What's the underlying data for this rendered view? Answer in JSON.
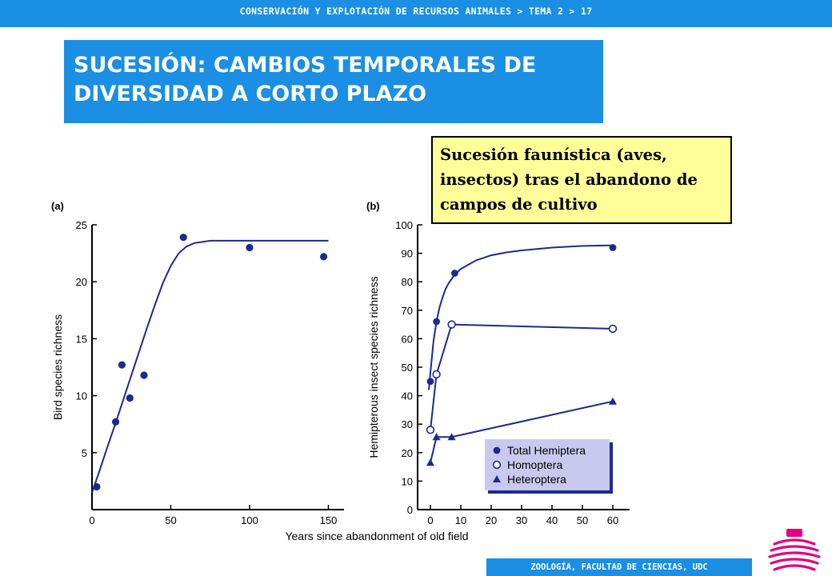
{
  "header": {
    "breadcrumb": "CONSERVACIÓN Y EXPLOTACIÓN DE RECURSOS ANIMALES > TEMA 2 > 17"
  },
  "title": {
    "line1": "SUCESIÓN: CAMBIOS TEMPORALES DE",
    "line2": "DIVERSIDAD A CORTO PLAZO"
  },
  "callout": {
    "line1": "Sucesión faunística (aves,",
    "line2": "insectos) tras el abandono de",
    "line3": "campos de cultivo"
  },
  "footer": {
    "text": "ZOOLOGÍA, FACULTAD DE CIENCIAS, UDC"
  },
  "colors": {
    "accent": "#1a8fe3",
    "series": "#1b2a8f",
    "callout_bg": "#fffe99",
    "legend_bg": "#c9c9ef",
    "logo": "#e3007e"
  },
  "shared_xlabel": "Years since abandonment of old field",
  "chart_data": [
    {
      "type": "scatter",
      "panel_label": "(a)",
      "ylabel": "Bird species richness",
      "xlabel": "",
      "xlim": [
        0,
        160
      ],
      "ylim": [
        0,
        25
      ],
      "xticks": [
        0,
        50,
        100,
        150
      ],
      "yticks": [
        5,
        10,
        15,
        20,
        25
      ],
      "points": {
        "x": [
          3,
          15,
          19,
          24,
          33,
          58,
          100,
          147
        ],
        "y": [
          2,
          7.7,
          12.7,
          9.8,
          11.8,
          23.9,
          23,
          22.2
        ]
      },
      "fit_curve": {
        "x": [
          0,
          5,
          10,
          15,
          20,
          25,
          30,
          35,
          40,
          45,
          50,
          55,
          60,
          65,
          70,
          75,
          80,
          90,
          100,
          120,
          150
        ],
        "y": [
          1.5,
          3.5,
          5.6,
          7.6,
          9.7,
          11.8,
          13.9,
          16.0,
          18.0,
          19.9,
          21.4,
          22.5,
          23.1,
          23.4,
          23.5,
          23.6,
          23.6,
          23.6,
          23.6,
          23.6,
          23.6
        ]
      }
    },
    {
      "type": "line",
      "panel_label": "(b)",
      "ylabel": "Hemipterous insect species richness",
      "xlabel": "",
      "xlim": [
        -2,
        65
      ],
      "ylim": [
        0,
        100
      ],
      "xticks": [
        0,
        10,
        20,
        30,
        40,
        50,
        60
      ],
      "yticks": [
        0,
        10,
        20,
        30,
        40,
        50,
        60,
        70,
        80,
        90,
        100
      ],
      "legend_position": "bottom-right",
      "series": [
        {
          "name": "Total Hemiptera",
          "marker": "filled-circle",
          "x": [
            0,
            2,
            8,
            60
          ],
          "y": [
            45,
            66,
            83,
            92
          ],
          "curve": {
            "x": [
              -0.5,
              0,
              1,
              2,
              3,
              4,
              5,
              6,
              8,
              10,
              15,
              20,
              25,
              30,
              40,
              50,
              60
            ],
            "y": [
              42,
              48,
              59,
              66,
              71,
              74.5,
              77.5,
              79.5,
              82.5,
              84.5,
              87.5,
              89.3,
              90.3,
              91,
              92,
              92.6,
              92.8
            ]
          }
        },
        {
          "name": "Homoptera",
          "marker": "open-circle",
          "x": [
            0,
            2,
            7,
            60
          ],
          "y": [
            28,
            47.5,
            65,
            63.5
          ]
        },
        {
          "name": "Heteroptera",
          "marker": "filled-triangle",
          "x": [
            0,
            2,
            7,
            60
          ],
          "y": [
            16.5,
            25.5,
            25.5,
            38
          ]
        }
      ]
    }
  ]
}
